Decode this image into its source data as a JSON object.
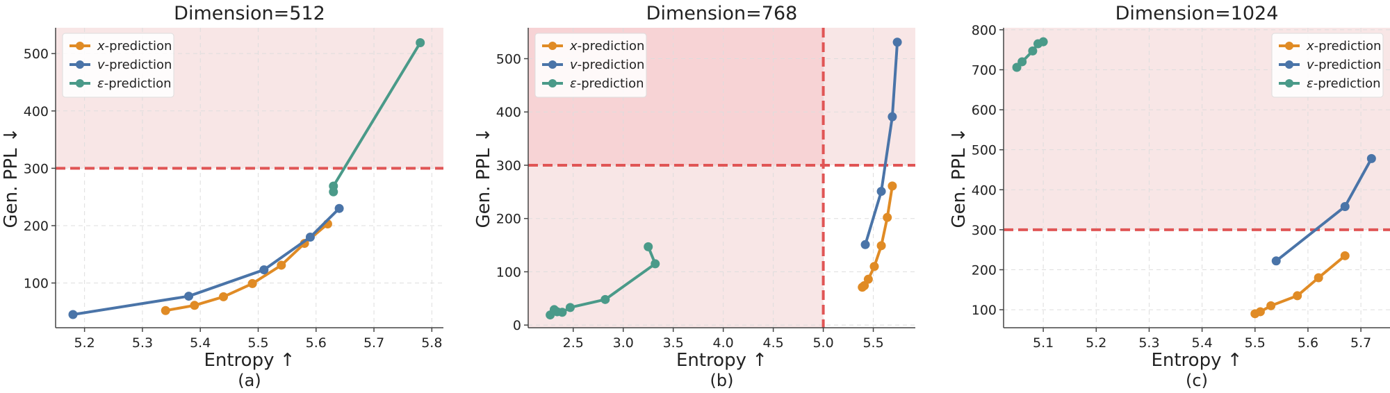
{
  "colors": {
    "x_prediction": "#E08B25",
    "v_prediction": "#4A74A8",
    "eps_prediction": "#4A9A89",
    "threshold": "#E05555",
    "shade": "#F8E6E6",
    "shade_dark": "#F7D3D5",
    "grid": "#DDDDDD"
  },
  "chart_data": [
    {
      "type": "line",
      "title": "Dimension=512",
      "caption": "(a)",
      "xlabel": "Entropy ↑",
      "ylabel": "Gen. PPL ↓",
      "xlim": [
        5.15,
        5.82
      ],
      "ylim": [
        22,
        545
      ],
      "xticks": [
        5.2,
        5.3,
        5.4,
        5.5,
        5.6,
        5.7,
        5.8
      ],
      "xtick_labels": [
        "5.2",
        "5.3",
        "5.4",
        "5.5",
        "5.6",
        "5.7",
        "5.8"
      ],
      "yticks": [
        100,
        200,
        300,
        400,
        500
      ],
      "ytick_labels": [
        "100",
        "200",
        "300",
        "400",
        "500"
      ],
      "grid": true,
      "legend_position": "top-left",
      "hline": 300,
      "shade_above": 300,
      "series": [
        {
          "name": "x-prediction",
          "prefix": "x",
          "color_key": "x_prediction",
          "x": [
            5.34,
            5.39,
            5.44,
            5.49,
            5.54,
            5.58,
            5.62
          ],
          "y": [
            52,
            61,
            76,
            99,
            131,
            169,
            203
          ]
        },
        {
          "name": "v-prediction",
          "prefix": "v",
          "color_key": "v_prediction",
          "x": [
            5.18,
            5.38,
            5.51,
            5.59,
            5.64
          ],
          "y": [
            45,
            77,
            123,
            180,
            230
          ]
        },
        {
          "name": "ε-prediction",
          "prefix": "ε",
          "color_key": "eps_prediction",
          "x": [
            5.63,
            5.63,
            5.78
          ],
          "y": [
            259,
            269,
            519
          ]
        }
      ]
    },
    {
      "type": "line",
      "title": "Dimension=768",
      "caption": "(b)",
      "xlabel": "Entropy ↑",
      "ylabel": "Gen. PPL ↓",
      "xlim": [
        2.05,
        5.92
      ],
      "ylim": [
        -5,
        558
      ],
      "xticks": [
        2.5,
        3.0,
        3.5,
        4.0,
        4.5,
        5.0,
        5.5
      ],
      "xtick_labels": [
        "2.5",
        "3.0",
        "3.5",
        "4.0",
        "4.5",
        "5.0",
        "5.5"
      ],
      "yticks": [
        0,
        100,
        200,
        300,
        400,
        500
      ],
      "ytick_labels": [
        "0",
        "100",
        "200",
        "300",
        "400",
        "500"
      ],
      "grid": true,
      "legend_position": "top-left",
      "hline": 300,
      "vline": 5.0,
      "shade_above": 300,
      "shade_left_of": 5.0,
      "series": [
        {
          "name": "x-prediction",
          "prefix": "x",
          "color_key": "x_prediction",
          "x": [
            5.39,
            5.41,
            5.45,
            5.51,
            5.58,
            5.64,
            5.69
          ],
          "y": [
            71,
            74,
            86,
            110,
            149,
            202,
            261
          ]
        },
        {
          "name": "v-prediction",
          "prefix": "v",
          "color_key": "v_prediction",
          "x": [
            5.42,
            5.58,
            5.69,
            5.74
          ],
          "y": [
            151,
            251,
            391,
            531
          ]
        },
        {
          "name": "ε-prediction",
          "prefix": "ε",
          "color_key": "eps_prediction",
          "x": [
            2.27,
            2.31,
            2.34,
            2.39,
            2.47,
            2.82,
            3.32,
            3.25
          ],
          "y": [
            19,
            29,
            25,
            24,
            33,
            48,
            115,
            147
          ]
        }
      ]
    },
    {
      "type": "line",
      "title": "Dimension=1024",
      "caption": "(c)",
      "xlabel": "Entropy ↑",
      "ylabel": "Gen. PPL ↓",
      "xlim": [
        5.025,
        5.755
      ],
      "ylim": [
        55,
        805
      ],
      "xticks": [
        5.1,
        5.2,
        5.3,
        5.4,
        5.5,
        5.6,
        5.7
      ],
      "xtick_labels": [
        "5.1",
        "5.2",
        "5.3",
        "5.4",
        "5.5",
        "5.6",
        "5.7"
      ],
      "yticks": [
        100,
        200,
        300,
        400,
        500,
        600,
        700,
        800
      ],
      "ytick_labels": [
        "100",
        "200",
        "300",
        "400",
        "500",
        "600",
        "700",
        "800"
      ],
      "grid": true,
      "legend_position": "top-right",
      "hline": 300,
      "shade_above": 300,
      "series": [
        {
          "name": "x-prediction",
          "prefix": "x",
          "color_key": "x_prediction",
          "x": [
            5.5,
            5.51,
            5.53,
            5.58,
            5.62,
            5.67
          ],
          "y": [
            90,
            95,
            110,
            135,
            180,
            235
          ]
        },
        {
          "name": "v-prediction",
          "prefix": "v",
          "color_key": "v_prediction",
          "x": [
            5.54,
            5.67,
            5.72
          ],
          "y": [
            222,
            358,
            478
          ]
        },
        {
          "name": "ε-prediction",
          "prefix": "ε",
          "color_key": "eps_prediction",
          "x": [
            5.05,
            5.06,
            5.08,
            5.09,
            5.1
          ],
          "y": [
            706,
            720,
            747,
            765,
            770
          ]
        }
      ]
    }
  ]
}
